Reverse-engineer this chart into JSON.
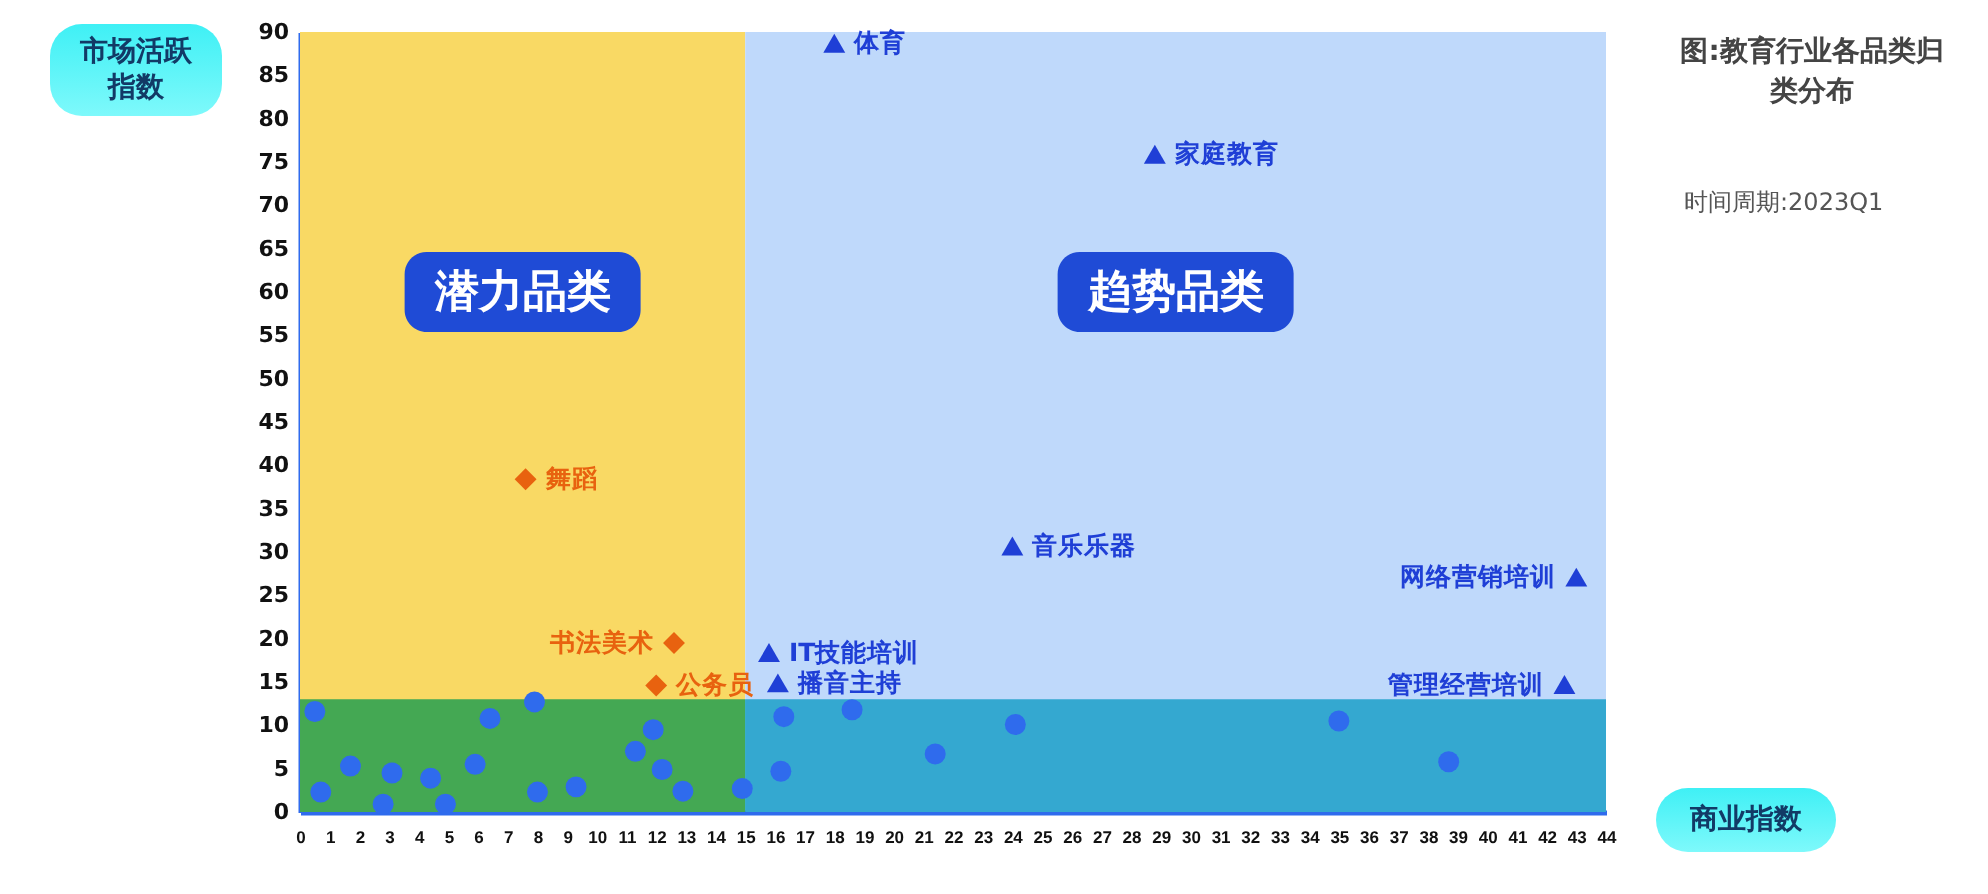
{
  "chart_data": {
    "type": "scatter",
    "title": "图:教育行业各品类归类分布",
    "xlabel": "商业指数",
    "ylabel": "市场活跃指数",
    "xlim": [
      0,
      44
    ],
    "xticks": [
      0,
      1,
      2,
      3,
      4,
      5,
      6,
      7,
      8,
      9,
      10,
      11,
      12,
      13,
      14,
      15,
      16,
      17,
      18,
      19,
      20,
      21,
      22,
      23,
      24,
      25,
      26,
      27,
      28,
      29,
      30,
      31,
      32,
      33,
      34,
      35,
      36,
      37,
      38,
      39,
      40,
      41,
      42,
      43,
      44
    ],
    "ylim": [
      0,
      90
    ],
    "yticks": [
      0,
      5,
      10,
      15,
      20,
      25,
      30,
      35,
      40,
      45,
      50,
      55,
      60,
      65,
      70,
      75,
      80,
      85,
      90
    ],
    "grid": false,
    "bands": [
      {
        "axis": "x",
        "from": 0,
        "to": 15,
        "label": "潜力品类",
        "color": "#f9d964"
      },
      {
        "axis": "x",
        "from": 15,
        "to": 44,
        "label": "趋势品类",
        "color": "#bfd9fb"
      },
      {
        "axis": "y",
        "from": 0,
        "to": 13,
        "color": "#45c6d4"
      }
    ],
    "series": [
      {
        "color": "#2f6bed",
        "marker": "circle",
        "x": [
          0.5,
          0.7,
          1.7,
          2.8,
          3.1,
          4.4,
          4.9,
          5.9,
          6.4,
          7.9,
          8.0,
          9.3,
          11.3,
          11.9,
          12.2,
          12.9,
          14.9,
          16.2,
          16.3,
          18.6,
          21.4,
          24.1,
          35,
          38.7
        ],
        "values": [
          11.6,
          2.3,
          5.3,
          0.9,
          4.5,
          3.9,
          0.9,
          5.5,
          10.8,
          12.7,
          2.3,
          2.9,
          7.0,
          9.5,
          4.9,
          2.4,
          2.7,
          4.7,
          11.0,
          11.8,
          6.7,
          10.1,
          10.5,
          5.8
        ]
      },
      {
        "color": "#e8620f",
        "marker": "diamond",
        "x": [
          7.6,
          12.6,
          12.0
        ],
        "values": [
          38.4,
          19.5,
          14.6
        ]
      },
      {
        "color": "#1f3fd6",
        "marker": "triangle",
        "x": [
          18.0,
          28.8,
          24.0,
          15.8,
          16.1,
          43.0,
          42.6
        ],
        "values": [
          88.7,
          75.9,
          30.7,
          18.4,
          14.9,
          27.1,
          14.7
        ]
      }
    ],
    "annotations": [
      {
        "text": "舞蹈",
        "x": 7.6,
        "y": 38.4
      },
      {
        "text": "书法美术",
        "x": 12.6,
        "y": 19.5
      },
      {
        "text": "公务员",
        "x": 12.0,
        "y": 14.6
      },
      {
        "text": "体育",
        "x": 18.0,
        "y": 88.7
      },
      {
        "text": "家庭教育",
        "x": 28.8,
        "y": 75.9
      },
      {
        "text": "音乐乐器",
        "x": 24.0,
        "y": 30.7
      },
      {
        "text": "IT技能培训",
        "x": 15.8,
        "y": 18.4
      },
      {
        "text": "播音主持",
        "x": 16.1,
        "y": 14.9
      },
      {
        "text": "网络营销培训",
        "x": 43.0,
        "y": 27.1
      },
      {
        "text": "管理经营培训",
        "x": 42.6,
        "y": 14.7
      },
      "时间周期:2023Q1"
    ]
  }
}
